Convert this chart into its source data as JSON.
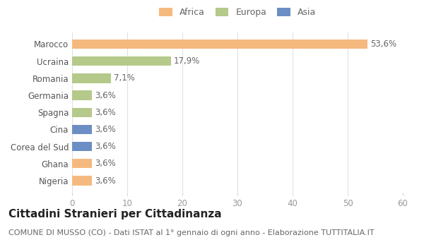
{
  "categories": [
    "Nigeria",
    "Ghana",
    "Corea del Sud",
    "Cina",
    "Spagna",
    "Germania",
    "Romania",
    "Ucraina",
    "Marocco"
  ],
  "values": [
    3.6,
    3.6,
    3.6,
    3.6,
    3.6,
    3.6,
    7.1,
    17.9,
    53.6
  ],
  "labels": [
    "3,6%",
    "3,6%",
    "3,6%",
    "3,6%",
    "3,6%",
    "3,6%",
    "7,1%",
    "17,9%",
    "53,6%"
  ],
  "colors": [
    "#f5b97f",
    "#f5b97f",
    "#6b8fc4",
    "#6b8fc4",
    "#b5c98a",
    "#b5c98a",
    "#b5c98a",
    "#b5c98a",
    "#f5b97f"
  ],
  "legend": [
    {
      "label": "Africa",
      "color": "#f5b97f"
    },
    {
      "label": "Europa",
      "color": "#b5c98a"
    },
    {
      "label": "Asia",
      "color": "#6b8fc4"
    }
  ],
  "xlim": [
    0,
    60
  ],
  "xticks": [
    0,
    10,
    20,
    30,
    40,
    50,
    60
  ],
  "title": "Cittadini Stranieri per Cittadinanza",
  "subtitle": "COMUNE DI MUSSO (CO) - Dati ISTAT al 1° gennaio di ogni anno - Elaborazione TUTTITALIA.IT",
  "background_color": "#ffffff",
  "bar_height": 0.55,
  "label_fontsize": 8.5,
  "tick_fontsize": 8.5,
  "title_fontsize": 11,
  "subtitle_fontsize": 8
}
